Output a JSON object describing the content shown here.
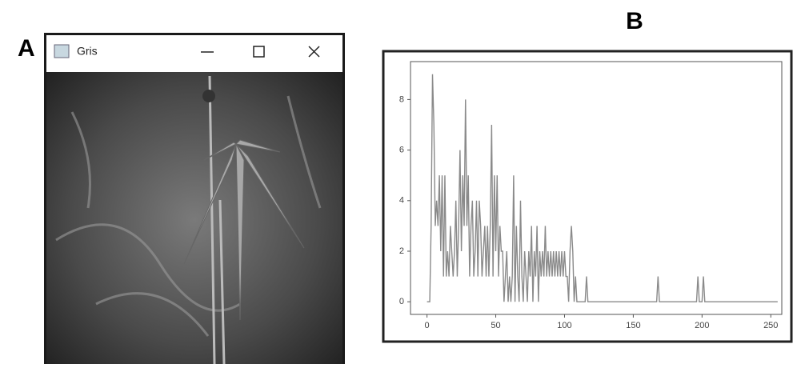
{
  "panel_labels": [
    "A",
    "B"
  ],
  "window": {
    "title": "Gris"
  },
  "chart_data": {
    "type": "line",
    "x": [
      0,
      1,
      2,
      3,
      4,
      5,
      6,
      7,
      8,
      9,
      10,
      11,
      12,
      13,
      14,
      15,
      16,
      17,
      18,
      19,
      20,
      21,
      22,
      23,
      24,
      25,
      26,
      27,
      28,
      29,
      30,
      31,
      32,
      33,
      34,
      35,
      36,
      37,
      38,
      39,
      40,
      41,
      42,
      43,
      44,
      45,
      46,
      47,
      48,
      49,
      50,
      51,
      52,
      53,
      54,
      55,
      56,
      57,
      58,
      59,
      60,
      61,
      62,
      63,
      64,
      65,
      66,
      67,
      68,
      69,
      70,
      71,
      72,
      73,
      74,
      75,
      76,
      77,
      78,
      79,
      80,
      81,
      82,
      83,
      84,
      85,
      86,
      87,
      88,
      89,
      90,
      91,
      92,
      93,
      94,
      95,
      96,
      97,
      98,
      99,
      100,
      101,
      102,
      103,
      104,
      105,
      106,
      107,
      108,
      109,
      110,
      115,
      116,
      117,
      167,
      168,
      169,
      196,
      197,
      198,
      200,
      201,
      202,
      255
    ],
    "series": [
      {
        "color": "#8a8a8a",
        "values": [
          0,
          0,
          0,
          3,
          9,
          7,
          3,
          4,
          3,
          5,
          2,
          5,
          1,
          5,
          1,
          2,
          1,
          3,
          2,
          1,
          2,
          4,
          1,
          3,
          6,
          2,
          5,
          3,
          8,
          3,
          5,
          1,
          3,
          4,
          1,
          2,
          4,
          1,
          4,
          3,
          1,
          2,
          3,
          1,
          3,
          1,
          3,
          7,
          1,
          5,
          2,
          5,
          1,
          3,
          2,
          2,
          0,
          1,
          2,
          0,
          1,
          0,
          1,
          5,
          0,
          3,
          1,
          0,
          4,
          1,
          0,
          2,
          1,
          0,
          2,
          1,
          3,
          0,
          2,
          1,
          3,
          0,
          2,
          1,
          2,
          1,
          3,
          1,
          2,
          1,
          2,
          1,
          2,
          1,
          2,
          1,
          2,
          1,
          2,
          1,
          2,
          1,
          1,
          0,
          2,
          3,
          2,
          0,
          1,
          0,
          0,
          0,
          1,
          0,
          0,
          1,
          0,
          0,
          1,
          0,
          0,
          1,
          0,
          0
        ]
      }
    ],
    "xlim": [
      -12,
      258
    ],
    "ylim": [
      -0.5,
      9.5
    ],
    "xticks": [
      0,
      50,
      100,
      150,
      200,
      250
    ],
    "yticks": [
      0,
      2,
      4,
      6,
      8
    ]
  }
}
